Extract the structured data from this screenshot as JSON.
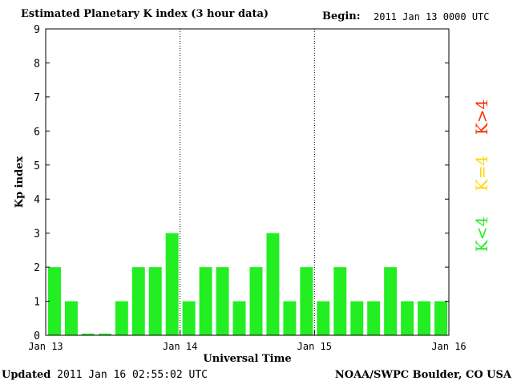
{
  "header": {
    "title": "Estimated Planetary K index (3 hour data)",
    "begin_label": "Begin:",
    "begin_value": "2011 Jan 13 0000 UTC"
  },
  "footer": {
    "updated_label": "Updated",
    "updated_value": "2011 Jan 16 02:55:02 UTC",
    "credit": "NOAA/SWPC Boulder, CO USA"
  },
  "legend": [
    {
      "label": "K>4",
      "color": "#ff2a00"
    },
    {
      "label": "K=4",
      "color": "#ffd700"
    },
    {
      "label": "K<4",
      "color": "#22ee22"
    }
  ],
  "chart_data": {
    "type": "bar",
    "ylabel": "Kp index",
    "xlabel": "Universal Time",
    "ylim": [
      0,
      9
    ],
    "yticks": [
      0,
      1,
      2,
      3,
      4,
      5,
      6,
      7,
      8,
      9
    ],
    "xtick_labels": [
      "Jan 13",
      "Jan 14",
      "Jan 15",
      "Jan 16"
    ],
    "day_dividers": true,
    "bar_color": "#22ee22",
    "values": [
      2,
      1,
      0.05,
      0.05,
      1,
      2,
      2,
      3,
      1,
      2,
      2,
      1,
      2,
      3,
      1,
      2,
      1,
      2,
      1,
      1,
      2,
      1,
      1,
      1
    ]
  }
}
